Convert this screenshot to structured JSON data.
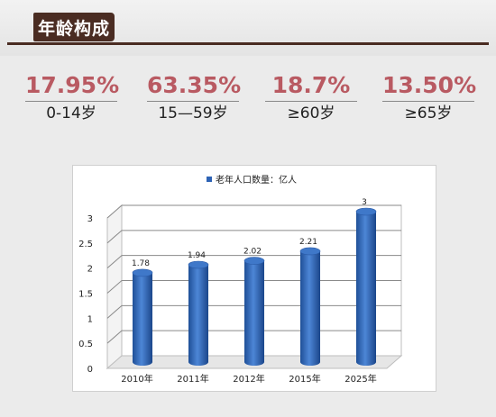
{
  "header": {
    "title": "年龄构成"
  },
  "stats": [
    {
      "value": "17.95%",
      "label": "0-14岁"
    },
    {
      "value": "63.35%",
      "label": "15—59岁"
    },
    {
      "value": "18.7%",
      "label": "≥60岁"
    },
    {
      "value": "13.50%",
      "label": "≥65岁"
    }
  ],
  "chart_data": {
    "type": "bar",
    "categories": [
      "2010年",
      "2011年",
      "2012年",
      "2015年",
      "2025年"
    ],
    "series": [
      {
        "name": "老年人口数量：亿人",
        "values": [
          1.78,
          1.94,
          2.02,
          2.21,
          3
        ]
      }
    ],
    "data_labels": [
      "1.78",
      "1.94",
      "2.02",
      "2.21",
      "3"
    ],
    "yticks": [
      "0",
      "0.5",
      "1",
      "1.5",
      "2",
      "2.5",
      "3"
    ],
    "ylim": [
      0,
      3
    ],
    "grid": true,
    "legend_position": "top",
    "bar_color": "#2e63b5",
    "bar_shape": "cylinder"
  }
}
